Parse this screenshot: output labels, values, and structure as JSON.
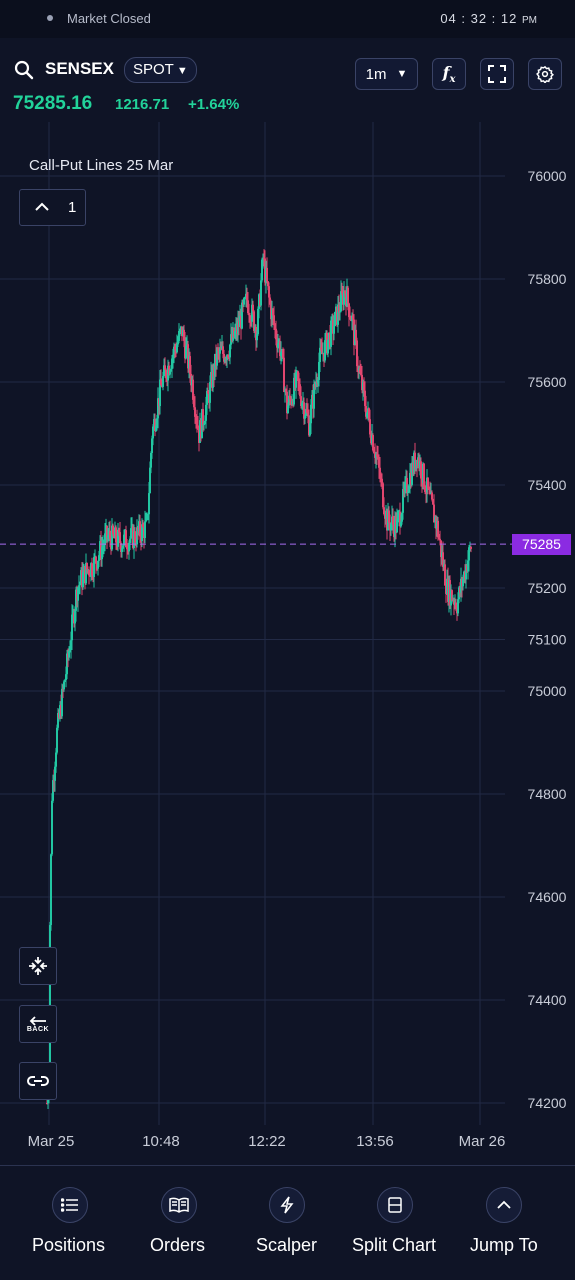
{
  "status_bar": {
    "market_status": "Market Closed",
    "time": "04 : 32 : 12",
    "ampm": "PM"
  },
  "header": {
    "symbol": "SENSEX",
    "instrument": "SPOT",
    "last_price": "75285.16",
    "change": "1216.71",
    "change_percent": "+1.64%",
    "timeframe": "1m",
    "up_color": "#22d39a"
  },
  "chart": {
    "indicator_label": "Call-Put Lines 25 Mar",
    "indicator_count": "1",
    "current_price_tag": "75285",
    "back_label": "BACK"
  },
  "chart_data": {
    "type": "candlestick",
    "y_ticks": [
      76000,
      75800,
      75600,
      75400,
      75200,
      75100,
      75000,
      74800,
      74600,
      74400,
      74200
    ],
    "ylim": [
      74150,
      76200
    ],
    "x_ticks": [
      "Mar 25",
      "10:48",
      "12:22",
      "13:56",
      "Mar 26"
    ],
    "current_price": 75285.16,
    "series_close_path": [
      [
        0,
        74200
      ],
      [
        2,
        74250
      ],
      [
        3,
        74550
      ],
      [
        5,
        74800
      ],
      [
        10,
        74920
      ],
      [
        20,
        75050
      ],
      [
        30,
        75200
      ],
      [
        38,
        75230
      ],
      [
        48,
        75250
      ],
      [
        60,
        75300
      ],
      [
        75,
        75290
      ],
      [
        88,
        75300
      ],
      [
        100,
        75320
      ],
      [
        105,
        75500
      ],
      [
        115,
        75600
      ],
      [
        125,
        75650
      ],
      [
        135,
        75700
      ],
      [
        145,
        75600
      ],
      [
        152,
        75500
      ],
      [
        160,
        75560
      ],
      [
        170,
        75650
      ],
      [
        180,
        75660
      ],
      [
        190,
        75700
      ],
      [
        200,
        75760
      ],
      [
        210,
        75700
      ],
      [
        216,
        75840
      ],
      [
        222,
        75760
      ],
      [
        228,
        75700
      ],
      [
        234,
        75660
      ],
      [
        240,
        75550
      ],
      [
        250,
        75600
      ],
      [
        262,
        75520
      ],
      [
        272,
        75640
      ],
      [
        285,
        75700
      ],
      [
        298,
        75780
      ],
      [
        305,
        75720
      ],
      [
        312,
        75620
      ],
      [
        318,
        75560
      ],
      [
        330,
        75450
      ],
      [
        340,
        75330
      ],
      [
        350,
        75320
      ],
      [
        360,
        75400
      ],
      [
        370,
        75460
      ],
      [
        380,
        75390
      ],
      [
        390,
        75320
      ],
      [
        400,
        75200
      ],
      [
        410,
        75170
      ],
      [
        420,
        75250
      ],
      [
        424,
        75280
      ]
    ],
    "up_color": "#22c6a2",
    "down_color": "#e2466f"
  },
  "bottom_nav": [
    {
      "label": "Positions",
      "icon": "list-icon"
    },
    {
      "label": "Orders",
      "icon": "book-icon"
    },
    {
      "label": "Scalper",
      "icon": "bolt-icon"
    },
    {
      "label": "Split Chart",
      "icon": "split-chart-icon"
    },
    {
      "label": "Jump To",
      "icon": "chevron-up-icon"
    }
  ]
}
